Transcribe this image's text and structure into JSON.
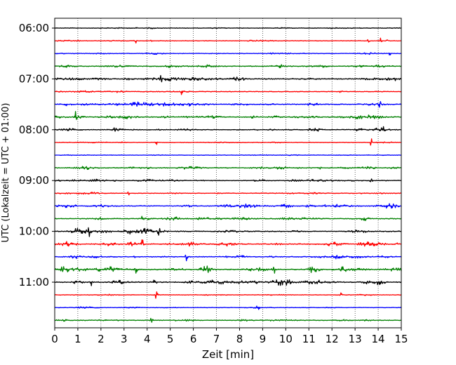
{
  "chart_data": {
    "type": "line",
    "title": "",
    "xlabel": "Zeit  [min]",
    "ylabel": "UTC (Lokalzeit = UTC + 01:00)",
    "xlim": [
      0,
      15
    ],
    "x_ticks": [
      "0",
      "1",
      "2",
      "3",
      "4",
      "5",
      "6",
      "7",
      "8",
      "9",
      "10",
      "11",
      "12",
      "13",
      "14",
      "15"
    ],
    "y_ticks": [
      "06:00",
      "07:00",
      "08:00",
      "09:00",
      "10:00",
      "11:00"
    ],
    "grid": "vertical dotted at each minute",
    "start_time": "06:00",
    "trace_interval_min": 15,
    "trace_colors": [
      "#000000",
      "#ff0000",
      "#0000ff",
      "#008000"
    ],
    "traces": [
      {
        "start": "06:00",
        "color": "#000000",
        "activity": 0.15,
        "events": []
      },
      {
        "start": "06:15",
        "color": "#ff0000",
        "activity": 0.15,
        "events": [
          [
            3.5,
            0.4
          ],
          [
            13.6,
            0.5
          ],
          [
            14.1,
            0.4
          ],
          [
            14.4,
            0.35
          ]
        ]
      },
      {
        "start": "06:30",
        "color": "#0000ff",
        "activity": 0.2,
        "events": [
          [
            14.5,
            0.35
          ]
        ]
      },
      {
        "start": "06:45",
        "color": "#008000",
        "activity": 0.35,
        "events": [
          [
            13.3,
            0.35
          ]
        ]
      },
      {
        "start": "07:00",
        "color": "#000000",
        "activity": 0.45,
        "events": [
          [
            4.6,
            0.45
          ]
        ]
      },
      {
        "start": "07:15",
        "color": "#ff0000",
        "activity": 0.2,
        "events": [
          [
            5.5,
            0.8
          ],
          [
            12.4,
            0.5
          ]
        ]
      },
      {
        "start": "07:30",
        "color": "#0000ff",
        "activity": 0.45,
        "events": [
          [
            14.1,
            0.6
          ]
        ]
      },
      {
        "start": "07:45",
        "color": "#008000",
        "activity": 0.45,
        "events": [
          [
            0.9,
            0.8
          ]
        ]
      },
      {
        "start": "08:00",
        "color": "#000000",
        "activity": 0.35,
        "events": [
          [
            2.6,
            0.45
          ],
          [
            14.2,
            0.45
          ]
        ]
      },
      {
        "start": "08:15",
        "color": "#ff0000",
        "activity": 0.15,
        "events": [
          [
            4.4,
            0.4
          ],
          [
            13.7,
            0.65
          ]
        ]
      },
      {
        "start": "08:30",
        "color": "#0000ff",
        "activity": 0.1,
        "events": []
      },
      {
        "start": "08:45",
        "color": "#008000",
        "activity": 0.35,
        "events": [
          [
            4.1,
            0.75
          ],
          [
            12.5,
            0.4
          ]
        ]
      },
      {
        "start": "09:00",
        "color": "#000000",
        "activity": 0.3,
        "events": [
          [
            1.8,
            0.5
          ],
          [
            13.7,
            0.35
          ]
        ]
      },
      {
        "start": "09:15",
        "color": "#ff0000",
        "activity": 0.25,
        "events": [
          [
            3.2,
            0.6
          ]
        ]
      },
      {
        "start": "09:30",
        "color": "#0000ff",
        "activity": 0.45,
        "events": [
          [
            11.7,
            0.45
          ]
        ]
      },
      {
        "start": "09:45",
        "color": "#008000",
        "activity": 0.4,
        "events": [
          [
            3.8,
            0.4
          ],
          [
            13.4,
            0.4
          ]
        ]
      },
      {
        "start": "10:00",
        "color": "#000000",
        "activity": 0.45,
        "events": [
          [
            1.5,
            0.8
          ],
          [
            4.5,
            0.7
          ]
        ]
      },
      {
        "start": "10:15",
        "color": "#ff0000",
        "activity": 0.5,
        "events": [
          [
            3.8,
            1.0
          ],
          [
            14.8,
            0.45
          ]
        ]
      },
      {
        "start": "10:30",
        "color": "#0000ff",
        "activity": 0.4,
        "events": [
          [
            5.7,
            0.8
          ]
        ]
      },
      {
        "start": "10:45",
        "color": "#008000",
        "activity": 0.65,
        "events": [
          [
            3.5,
            0.6
          ],
          [
            9.5,
            0.5
          ]
        ]
      },
      {
        "start": "11:00",
        "color": "#000000",
        "activity": 0.55,
        "events": [
          [
            1.6,
            0.6
          ],
          [
            4.3,
            0.5
          ]
        ]
      },
      {
        "start": "11:15",
        "color": "#ff0000",
        "activity": 0.15,
        "events": [
          [
            4.4,
            0.7
          ],
          [
            12.4,
            0.55
          ]
        ]
      },
      {
        "start": "11:30",
        "color": "#0000ff",
        "activity": 0.15,
        "events": [
          [
            8.8,
            0.6
          ]
        ]
      },
      {
        "start": "11:45",
        "color": "#008000",
        "activity": 0.25,
        "events": [
          [
            4.2,
            0.8
          ]
        ]
      }
    ]
  }
}
